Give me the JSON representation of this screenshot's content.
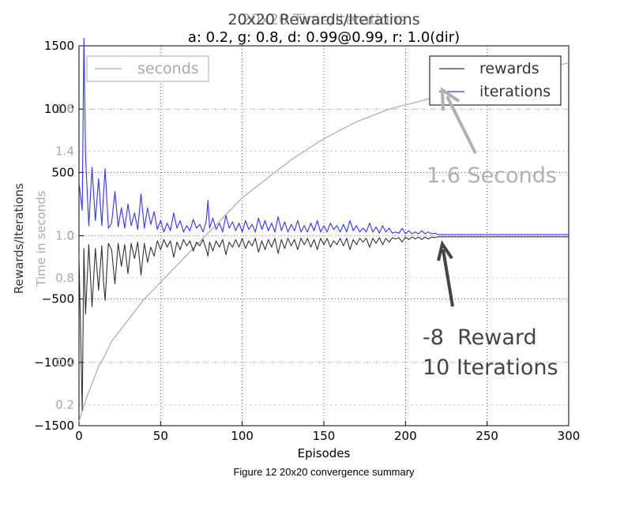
{
  "chart_data": {
    "type": "line",
    "title_back": "20x20 Time/Iterations",
    "title": "20x20 Rewards/Iterations",
    "subtitle": "a: 0.2, g: 0.8, d: 0.99@0.99, r: 1.0(dir)",
    "xlabel": "Episodes",
    "ylabel_left": "Rewards/Iterations",
    "ylabel_right": "Time in seconds",
    "xlim": [
      0,
      300
    ],
    "ylim_left": [
      -1500,
      1500
    ],
    "ylim_seconds": [
      0.1,
      1.9
    ],
    "x_ticks": [
      "0",
      "50",
      "100",
      "150",
      "200",
      "250",
      "300"
    ],
    "y_ticks_left": [
      "1500",
      "1000",
      "500",
      "0",
      "−500",
      "−1000",
      "−1500"
    ],
    "y_ticks_seconds": [
      "1.6",
      "1.4",
      "1.0",
      "0.8",
      "0.4",
      "0.2"
    ],
    "grid": true,
    "legend_left": {
      "placement": "top-left",
      "entries": [
        "seconds"
      ]
    },
    "legend_right": {
      "placement": "top-right",
      "entries": [
        "rewards",
        "iterations"
      ]
    },
    "colors": {
      "rewards": "#333333",
      "iterations": "#3333ff",
      "seconds": "#aaaaaa",
      "annotation_light": "#b0b0b0",
      "annotation_dark": "#444444"
    },
    "series": [
      {
        "name": "iterations",
        "x": [
          0,
          2,
          3,
          4,
          6,
          8,
          10,
          12,
          14,
          15,
          16,
          18,
          20,
          22,
          24,
          26,
          28,
          30,
          32,
          34,
          36,
          38,
          40,
          42,
          44,
          46,
          48,
          50,
          52,
          54,
          56,
          58,
          60,
          62,
          64,
          66,
          68,
          70,
          72,
          74,
          76,
          78,
          79,
          80,
          82,
          84,
          86,
          88,
          90,
          92,
          94,
          96,
          98,
          100,
          102,
          104,
          106,
          108,
          110,
          112,
          114,
          116,
          118,
          120,
          122,
          124,
          126,
          128,
          130,
          132,
          134,
          136,
          138,
          140,
          142,
          144,
          146,
          148,
          150,
          152,
          154,
          156,
          158,
          160,
          162,
          164,
          166,
          168,
          170,
          172,
          174,
          176,
          178,
          180,
          182,
          184,
          186,
          188,
          190,
          192,
          194,
          196,
          198,
          200,
          202,
          204,
          206,
          208,
          210,
          212,
          214,
          216,
          218,
          220,
          300
        ],
        "y": [
          420,
          200,
          1560,
          630,
          80,
          540,
          120,
          450,
          80,
          320,
          530,
          60,
          100,
          350,
          70,
          220,
          60,
          250,
          80,
          180,
          50,
          330,
          60,
          220,
          90,
          190,
          50,
          120,
          30,
          100,
          40,
          180,
          60,
          120,
          30,
          80,
          40,
          130,
          60,
          90,
          30,
          120,
          280,
          60,
          140,
          50,
          100,
          30,
          160,
          60,
          110,
          40,
          100,
          30,
          120,
          50,
          90,
          30,
          140,
          50,
          120,
          40,
          100,
          30,
          150,
          40,
          110,
          30,
          90,
          40,
          120,
          30,
          80,
          30,
          100,
          40,
          120,
          30,
          80,
          30,
          100,
          50,
          80,
          30,
          90,
          30,
          120,
          40,
          80,
          30,
          60,
          30,
          100,
          30,
          70,
          20,
          80,
          30,
          60,
          20,
          30,
          20,
          60,
          15,
          40,
          15,
          30,
          15,
          40,
          15,
          30,
          15,
          20,
          10,
          10
        ]
      },
      {
        "name": "rewards",
        "x": [
          0,
          2,
          3,
          4,
          6,
          8,
          10,
          12,
          14,
          15,
          16,
          18,
          20,
          22,
          24,
          26,
          28,
          30,
          32,
          34,
          36,
          38,
          40,
          42,
          44,
          46,
          48,
          50,
          52,
          54,
          56,
          58,
          60,
          62,
          64,
          66,
          68,
          70,
          72,
          74,
          76,
          78,
          79,
          80,
          82,
          84,
          86,
          88,
          90,
          92,
          94,
          96,
          98,
          100,
          102,
          104,
          106,
          108,
          110,
          112,
          114,
          116,
          118,
          120,
          122,
          124,
          126,
          128,
          130,
          132,
          134,
          136,
          138,
          140,
          142,
          144,
          146,
          148,
          150,
          152,
          154,
          156,
          158,
          160,
          162,
          164,
          166,
          168,
          170,
          172,
          174,
          176,
          178,
          180,
          182,
          184,
          186,
          188,
          190,
          192,
          194,
          196,
          198,
          200,
          202,
          204,
          206,
          208,
          210,
          212,
          214,
          216,
          218,
          220,
          300
        ],
        "y": [
          -150,
          -1380,
          -100,
          -620,
          -70,
          -560,
          -100,
          -430,
          -80,
          -360,
          -510,
          -60,
          -110,
          -380,
          -60,
          -240,
          -70,
          -300,
          -60,
          -180,
          -50,
          -310,
          -60,
          -210,
          -90,
          -160,
          -40,
          -110,
          -30,
          -90,
          -40,
          -170,
          -50,
          -110,
          -30,
          -80,
          -40,
          -120,
          -50,
          -80,
          -30,
          -110,
          -160,
          -50,
          -120,
          -40,
          -90,
          -30,
          -150,
          -50,
          -90,
          -30,
          -90,
          -20,
          -100,
          -40,
          -80,
          -20,
          -130,
          -40,
          -110,
          -30,
          -90,
          -20,
          -140,
          -30,
          -100,
          -20,
          -80,
          -30,
          -110,
          -20,
          -70,
          -20,
          -90,
          -30,
          -110,
          -20,
          -70,
          -20,
          -90,
          -40,
          -70,
          -20,
          -80,
          -20,
          -110,
          -30,
          -70,
          -20,
          -50,
          -20,
          -90,
          -20,
          -60,
          -15,
          -70,
          -20,
          -50,
          -15,
          -25,
          -15,
          -50,
          -10,
          -30,
          -10,
          -25,
          -10,
          -30,
          -10,
          -25,
          -10,
          -15,
          -8,
          -8
        ]
      },
      {
        "name": "seconds",
        "x": [
          0,
          2,
          4,
          6,
          8,
          10,
          12,
          15,
          20,
          25,
          30,
          35,
          40,
          45,
          50,
          55,
          60,
          65,
          70,
          75,
          80,
          85,
          90,
          95,
          100,
          110,
          120,
          130,
          140,
          150,
          160,
          170,
          180,
          190,
          200,
          210,
          220,
          230,
          240,
          250,
          260,
          270,
          280,
          290,
          300
        ],
        "y": [
          0.12,
          0.17,
          0.22,
          0.26,
          0.3,
          0.34,
          0.38,
          0.42,
          0.5,
          0.55,
          0.6,
          0.65,
          0.7,
          0.74,
          0.78,
          0.82,
          0.86,
          0.9,
          0.94,
          0.98,
          1.02,
          1.06,
          1.1,
          1.14,
          1.18,
          1.24,
          1.3,
          1.36,
          1.41,
          1.46,
          1.5,
          1.54,
          1.57,
          1.6,
          1.62,
          1.64,
          1.66,
          1.68,
          1.7,
          1.72,
          1.74,
          1.76,
          1.78,
          1.8,
          1.82
        ]
      }
    ]
  },
  "annotations": {
    "seconds_note": "1.6 Seconds",
    "reward_note": "-8  Reward",
    "iterations_note": "10 Iterations"
  },
  "caption": "Figure 12 20x20 convergence summary"
}
